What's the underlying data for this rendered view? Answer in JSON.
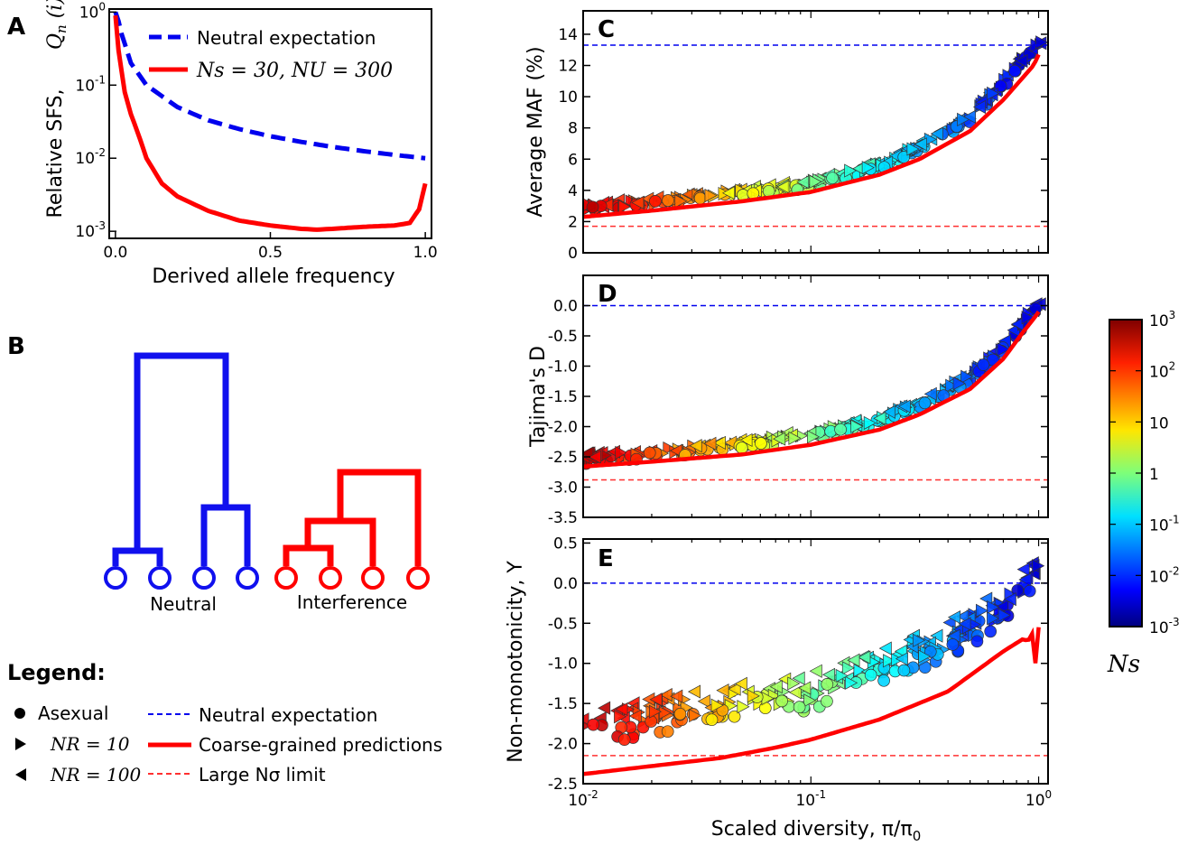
{
  "colors": {
    "neutral": "#0000ee",
    "asymptote": "#ff3030",
    "red": "#ff0000",
    "blue": "#1010ee"
  },
  "panel_letters": {
    "A": "A",
    "B": "B",
    "C": "C",
    "D": "D",
    "E": "E"
  },
  "panel_a": {
    "xlabel": "Derived allele frequency",
    "ylabel": "Relative SFS,",
    "ylabel_math": "Q_n (i)",
    "xticks": [
      "0.0",
      "0.5",
      "1.0"
    ],
    "yticks": [
      {
        "base": "10",
        "exp": "0"
      },
      {
        "base": "10",
        "exp": "-1"
      },
      {
        "base": "10",
        "exp": "-2"
      },
      {
        "base": "10",
        "exp": "-3"
      }
    ],
    "legend": {
      "neutral": "Neutral expectation",
      "interference": "Ns = 30,  NU = 300"
    }
  },
  "panel_b": {
    "labels": {
      "neutral": "Neutral",
      "interference": "Interference"
    }
  },
  "legend": {
    "title": "Legend:",
    "items": [
      {
        "marker": "circle",
        "label": "Asexual"
      },
      {
        "marker": "tri-right",
        "label": "NR = 10"
      },
      {
        "marker": "tri-left",
        "label": "NR = 100"
      },
      {
        "line": "neutral-dashed",
        "label": "Neutral expectation"
      },
      {
        "line": "coarse-solid",
        "label": "Coarse-grained predictions"
      },
      {
        "line": "large-dashed",
        "label": "Large Nσ limit"
      }
    ]
  },
  "right": {
    "xlabel": "Scaled diversity, π/π",
    "xlabel_sub": "0",
    "xticks": [
      {
        "base": "10",
        "exp": "-2"
      },
      {
        "base": "10",
        "exp": "-1"
      },
      {
        "base": "10",
        "exp": "0"
      }
    ],
    "panel_c": {
      "ylabel": "Average MAF (%)",
      "yticks": [
        "0",
        "2",
        "4",
        "6",
        "8",
        "10",
        "12",
        "14"
      ]
    },
    "panel_d": {
      "ylabel": "Tajima's D",
      "yticks": [
        "0.0",
        "-0.5",
        "-1.0",
        "-1.5",
        "-2.0",
        "-2.5",
        "-3.0",
        "-3.5"
      ]
    },
    "panel_e": {
      "ylabel": "Non-monotonicity, Υ",
      "yticks": [
        "0.5",
        "0.0",
        "-0.5",
        "-1.0",
        "-1.5",
        "-2.0",
        "-2.5"
      ]
    }
  },
  "colorbar": {
    "label": "Ns",
    "ticks": [
      {
        "base": "10",
        "exp": "3"
      },
      {
        "base": "10",
        "exp": "2"
      },
      {
        "base": "10",
        "exp": ""
      },
      {
        "base": "1",
        "exp": ""
      },
      {
        "base": "10",
        "exp": "-1"
      },
      {
        "base": "10",
        "exp": "-2"
      },
      {
        "base": "10",
        "exp": "-3"
      }
    ]
  },
  "chart_data": [
    {
      "panel": "A",
      "type": "line",
      "xlabel": "Derived allele frequency",
      "ylabel": "Relative SFS, Q_n(i)",
      "yscale": "log",
      "xlim": [
        -0.02,
        1.02
      ],
      "ylim": [
        0.0008,
        1.1
      ],
      "series": [
        {
          "name": "Neutral expectation",
          "style": "dashed",
          "color": "#0000ee",
          "x": [
            0.0,
            0.01,
            0.02,
            0.05,
            0.1,
            0.2,
            0.3,
            0.4,
            0.5,
            0.6,
            0.7,
            0.8,
            0.9,
            1.0
          ],
          "y": [
            1.0,
            0.75,
            0.5,
            0.2,
            0.1,
            0.05,
            0.033,
            0.025,
            0.02,
            0.0167,
            0.0143,
            0.0125,
            0.0111,
            0.01
          ]
        },
        {
          "name": "Ns = 30, NU = 300",
          "style": "solid",
          "color": "#ff0000",
          "x": [
            0.0,
            0.01,
            0.03,
            0.05,
            0.08,
            0.1,
            0.15,
            0.2,
            0.3,
            0.4,
            0.5,
            0.6,
            0.65,
            0.7,
            0.8,
            0.9,
            0.95,
            0.98,
            1.0
          ],
          "y": [
            0.9,
            0.3,
            0.08,
            0.04,
            0.018,
            0.01,
            0.0045,
            0.003,
            0.0019,
            0.0014,
            0.0012,
            0.00108,
            0.00105,
            0.00108,
            0.00115,
            0.0012,
            0.0013,
            0.002,
            0.0045
          ]
        }
      ]
    },
    {
      "panel": "C",
      "type": "scatter",
      "xlabel": "Scaled diversity, π/π0",
      "ylabel": "Average MAF (%)",
      "xscale": "log",
      "xlim": [
        0.01,
        1.1
      ],
      "ylim": [
        0,
        15.5
      ],
      "reference_lines": {
        "neutral": 13.3,
        "large_Nsigma": 1.7
      },
      "coarse_grained": {
        "x": [
          0.01,
          0.02,
          0.05,
          0.1,
          0.2,
          0.3,
          0.5,
          0.7,
          0.85,
          0.95,
          1.0
        ],
        "y": [
          2.3,
          2.7,
          3.3,
          3.9,
          5.0,
          6.0,
          7.8,
          9.8,
          11.2,
          12.0,
          12.7
        ]
      },
      "points_trend": {
        "x": [
          0.01,
          0.02,
          0.05,
          0.1,
          0.2,
          0.3,
          0.5,
          0.7,
          0.85,
          1.0
        ],
        "y": [
          2.8,
          3.2,
          3.8,
          4.4,
          5.5,
          6.7,
          8.6,
          10.8,
          12.3,
          13.4
        ]
      }
    },
    {
      "panel": "D",
      "type": "scatter",
      "xlabel": "Scaled diversity, π/π0",
      "ylabel": "Tajima's D",
      "xscale": "log",
      "xlim": [
        0.01,
        1.1
      ],
      "ylim": [
        -3.5,
        0.5
      ],
      "reference_lines": {
        "neutral": 0.0,
        "large_Nsigma": -2.88
      },
      "coarse_grained": {
        "x": [
          0.01,
          0.02,
          0.05,
          0.1,
          0.2,
          0.3,
          0.5,
          0.7,
          0.85,
          0.95,
          1.0
        ],
        "y": [
          -2.66,
          -2.58,
          -2.46,
          -2.3,
          -2.05,
          -1.8,
          -1.38,
          -0.88,
          -0.45,
          -0.22,
          -0.1
        ]
      },
      "points_trend": {
        "x": [
          0.01,
          0.02,
          0.05,
          0.1,
          0.2,
          0.3,
          0.5,
          0.7,
          0.85,
          1.0
        ],
        "y": [
          -2.55,
          -2.45,
          -2.32,
          -2.15,
          -1.9,
          -1.65,
          -1.2,
          -0.7,
          -0.3,
          0.0
        ]
      }
    },
    {
      "panel": "E",
      "type": "scatter",
      "xlabel": "Scaled diversity, π/π0",
      "ylabel": "Non-monotonicity, Υ",
      "xscale": "log",
      "xlim": [
        0.01,
        1.1
      ],
      "ylim": [
        -2.5,
        0.55
      ],
      "reference_lines": {
        "neutral": 0.0,
        "large_Nsigma": -2.15
      },
      "coarse_grained": {
        "x": [
          0.01,
          0.02,
          0.04,
          0.07,
          0.1,
          0.2,
          0.4,
          0.7,
          0.85,
          0.9,
          0.95,
          0.97,
          1.0
        ],
        "y": [
          -2.38,
          -2.28,
          -2.18,
          -2.05,
          -1.95,
          -1.7,
          -1.35,
          -0.85,
          -0.7,
          -0.72,
          -0.6,
          -1.05,
          -0.55
        ]
      },
      "points_trend": {
        "x": [
          0.01,
          0.02,
          0.05,
          0.1,
          0.2,
          0.3,
          0.5,
          0.7,
          0.85,
          1.0
        ],
        "y": [
          -1.85,
          -1.7,
          -1.5,
          -1.4,
          -1.1,
          -0.9,
          -0.6,
          -0.35,
          -0.1,
          0.05
        ]
      }
    }
  ]
}
